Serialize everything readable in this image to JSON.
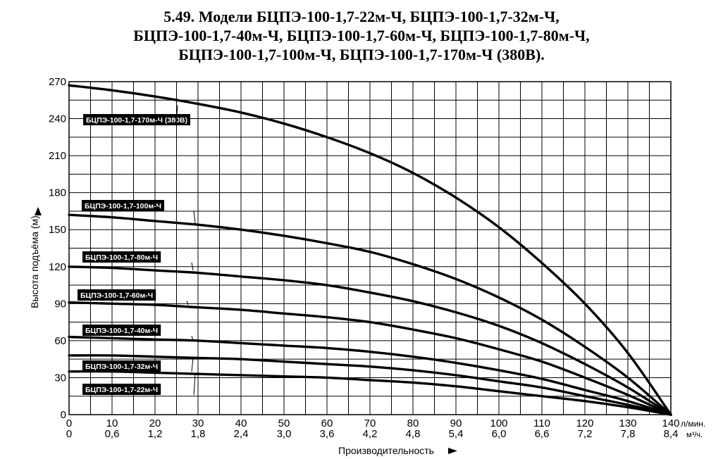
{
  "title": {
    "line1": "5.49. Модели БЦПЭ-100-1,7-22м-Ч, БЦПЭ-100-1,7-32м-Ч,",
    "line2": "БЦПЭ-100-1,7-40м-Ч, БЦПЭ-100-1,7-60м-Ч, БЦПЭ-100-1,7-80м-Ч,",
    "line3": "БЦПЭ-100-1,7-100м-Ч, БЦПЭ-100-1,7-170м-Ч (380В)."
  },
  "chart_data": {
    "type": "line",
    "ylabel": "Высота подъёма (м)",
    "xlabel": "Производительность",
    "x_unit_primary": "л/мин.",
    "x_unit_secondary": "м³/ч.",
    "xlim": [
      0,
      140
    ],
    "ylim": [
      0,
      270
    ],
    "grid": true,
    "x_ticks": [
      "0",
      "10",
      "20",
      "30",
      "40",
      "50",
      "60",
      "70",
      "80",
      "90",
      "100",
      "110",
      "120",
      "130",
      "140"
    ],
    "x_ticks_secondary": [
      "0",
      "0,6",
      "1,2",
      "1,8",
      "2,4",
      "3,0",
      "3,6",
      "4,2",
      "4,8",
      "5,4",
      "6,0",
      "6,6",
      "7,2",
      "7,8",
      "8,4"
    ],
    "y_ticks": [
      "0",
      "30",
      "60",
      "90",
      "120",
      "150",
      "180",
      "210",
      "240",
      "270"
    ],
    "series": [
      {
        "name": "БЦПЭ-100-1,7-170м-Ч (380В)",
        "x": [
          0,
          10,
          20,
          30,
          40,
          50,
          60,
          70,
          80,
          90,
          100,
          110,
          120,
          130,
          140
        ],
        "y": [
          267,
          263,
          258,
          252,
          245,
          236,
          225,
          212,
          196,
          176,
          152,
          123,
          90,
          50,
          0
        ]
      },
      {
        "name": "БЦПЭ-100-1,7-100м-Ч",
        "x": [
          0,
          10,
          20,
          30,
          40,
          50,
          60,
          70,
          80,
          90,
          100,
          110,
          120,
          130,
          140
        ],
        "y": [
          162,
          160,
          157,
          154,
          150,
          145,
          139,
          132,
          122,
          110,
          95,
          77,
          55,
          30,
          0
        ]
      },
      {
        "name": "БЦПЭ-100-1,7-80м-Ч",
        "x": [
          0,
          10,
          20,
          30,
          40,
          50,
          60,
          70,
          80,
          90,
          100,
          110,
          120,
          130,
          140
        ],
        "y": [
          120,
          119,
          117,
          115,
          112,
          109,
          105,
          99,
          92,
          83,
          72,
          58,
          41,
          22,
          0
        ]
      },
      {
        "name": "БЦПЭ-100-1,7-60м-Ч",
        "x": [
          0,
          10,
          20,
          30,
          40,
          50,
          60,
          70,
          80,
          90,
          100,
          110,
          120,
          130,
          140
        ],
        "y": [
          91,
          90,
          89,
          87,
          85,
          82,
          79,
          75,
          69,
          62,
          53,
          43,
          30,
          16,
          0
        ]
      },
      {
        "name": "БЦПЭ-100-1,7-40м-Ч",
        "x": [
          0,
          10,
          20,
          30,
          40,
          50,
          60,
          70,
          80,
          90,
          100,
          110,
          120,
          130,
          140
        ],
        "y": [
          63,
          62,
          61,
          60,
          58,
          56,
          54,
          51,
          47,
          42,
          36,
          29,
          20,
          11,
          0
        ]
      },
      {
        "name": "БЦПЭ-100-1,7-32м-Ч",
        "x": [
          0,
          10,
          20,
          30,
          40,
          50,
          60,
          70,
          80,
          90,
          100,
          110,
          120,
          130,
          140
        ],
        "y": [
          48,
          48,
          47,
          46,
          45,
          43,
          41,
          39,
          36,
          32,
          27,
          22,
          15,
          8,
          0
        ]
      },
      {
        "name": "БЦПЭ-100-1,7-22м-Ч",
        "x": [
          0,
          10,
          20,
          30,
          40,
          50,
          60,
          70,
          80,
          90,
          100,
          110,
          120,
          130,
          140
        ],
        "y": [
          35,
          35,
          34,
          33,
          32,
          31,
          30,
          28,
          26,
          23,
          19,
          15,
          11,
          6,
          0
        ]
      }
    ]
  }
}
